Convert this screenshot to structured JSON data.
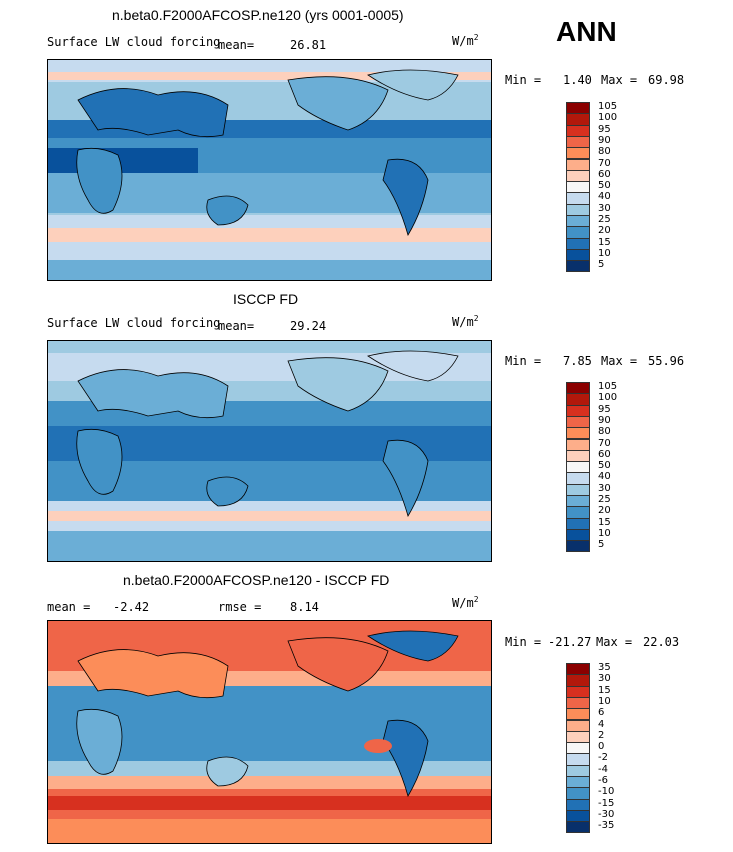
{
  "season": "ANN",
  "units_main": "W/m",
  "units_exp": "2",
  "panels": [
    {
      "title": "n.beta0.F2000AFCOSP.ne120 (yrs 0001-0005)",
      "subtitle": "Surface LW cloud forcing",
      "mean_label": "mean=",
      "mean_value": "26.81",
      "min_label": "Min =",
      "min_value": "1.40",
      "max_label": "Max =",
      "max_value": "69.98",
      "levels": [
        "105",
        "100",
        "95",
        "90",
        "80",
        "70",
        "60",
        "50",
        "40",
        "30",
        "25",
        "20",
        "15",
        "10",
        "5"
      ]
    },
    {
      "title": "ISCCP FD",
      "subtitle": "Surface LW cloud forcing",
      "mean_label": "mean=",
      "mean_value": "29.24",
      "min_label": "Min =",
      "min_value": "7.85",
      "max_label": "Max =",
      "max_value": "55.96",
      "levels": [
        "105",
        "100",
        "95",
        "90",
        "80",
        "70",
        "60",
        "50",
        "40",
        "30",
        "25",
        "20",
        "15",
        "10",
        "5"
      ]
    },
    {
      "title": "n.beta0.F2000AFCOSP.ne120 - ISCCP FD",
      "mean_label": "mean =",
      "mean_value": "-2.42",
      "rmse_label": "rmse =",
      "rmse_value": "8.14",
      "min_label": "Min =",
      "min_value": "-21.27",
      "max_label": "Max =",
      "max_value": "22.03",
      "levels": [
        "35",
        "30",
        "15",
        "10",
        "6",
        "4",
        "2",
        "0",
        "-2",
        "-4",
        "-6",
        "-10",
        "-15",
        "-30",
        "-35"
      ]
    }
  ],
  "colors": {
    "abs_scale": [
      "#8b0000",
      "#b2180b",
      "#d7301f",
      "#ef6548",
      "#fc8d59",
      "#fdae8a",
      "#fdd0bc",
      "#f7f7f7",
      "#c6dbef",
      "#9ecae1",
      "#6baed6",
      "#4292c6",
      "#2171b5",
      "#08519c",
      "#08306b"
    ],
    "diff_scale": [
      "#8b0000",
      "#b2180b",
      "#d7301f",
      "#ef6548",
      "#fc8d59",
      "#fdae8a",
      "#fdd0bc",
      "#f7f7f7",
      "#c6dbef",
      "#9ecae1",
      "#6baed6",
      "#4292c6",
      "#2171b5",
      "#08519c",
      "#08306b"
    ]
  },
  "chart_data": [
    {
      "type": "heatmap",
      "title": "n.beta0.F2000AFCOSP.ne120 (yrs 0001-0005)",
      "variable": "Surface LW cloud forcing",
      "units": "W/m2",
      "mean": 26.81,
      "min": 1.4,
      "max": 69.98,
      "contour_levels": [
        5,
        10,
        15,
        20,
        25,
        30,
        40,
        50,
        60,
        70,
        80,
        90,
        95,
        100,
        105
      ]
    },
    {
      "type": "heatmap",
      "title": "ISCCP FD",
      "variable": "Surface LW cloud forcing",
      "units": "W/m2",
      "mean": 29.24,
      "min": 7.85,
      "max": 55.96,
      "contour_levels": [
        5,
        10,
        15,
        20,
        25,
        30,
        40,
        50,
        60,
        70,
        80,
        90,
        95,
        100,
        105
      ]
    },
    {
      "type": "heatmap",
      "title": "n.beta0.F2000AFCOSP.ne120 - ISCCP FD",
      "units": "W/m2",
      "mean": -2.42,
      "rmse": 8.14,
      "min": -21.27,
      "max": 22.03,
      "contour_levels": [
        -35,
        -30,
        -15,
        -10,
        -6,
        -4,
        -2,
        0,
        2,
        4,
        6,
        10,
        15,
        30,
        35
      ]
    }
  ]
}
